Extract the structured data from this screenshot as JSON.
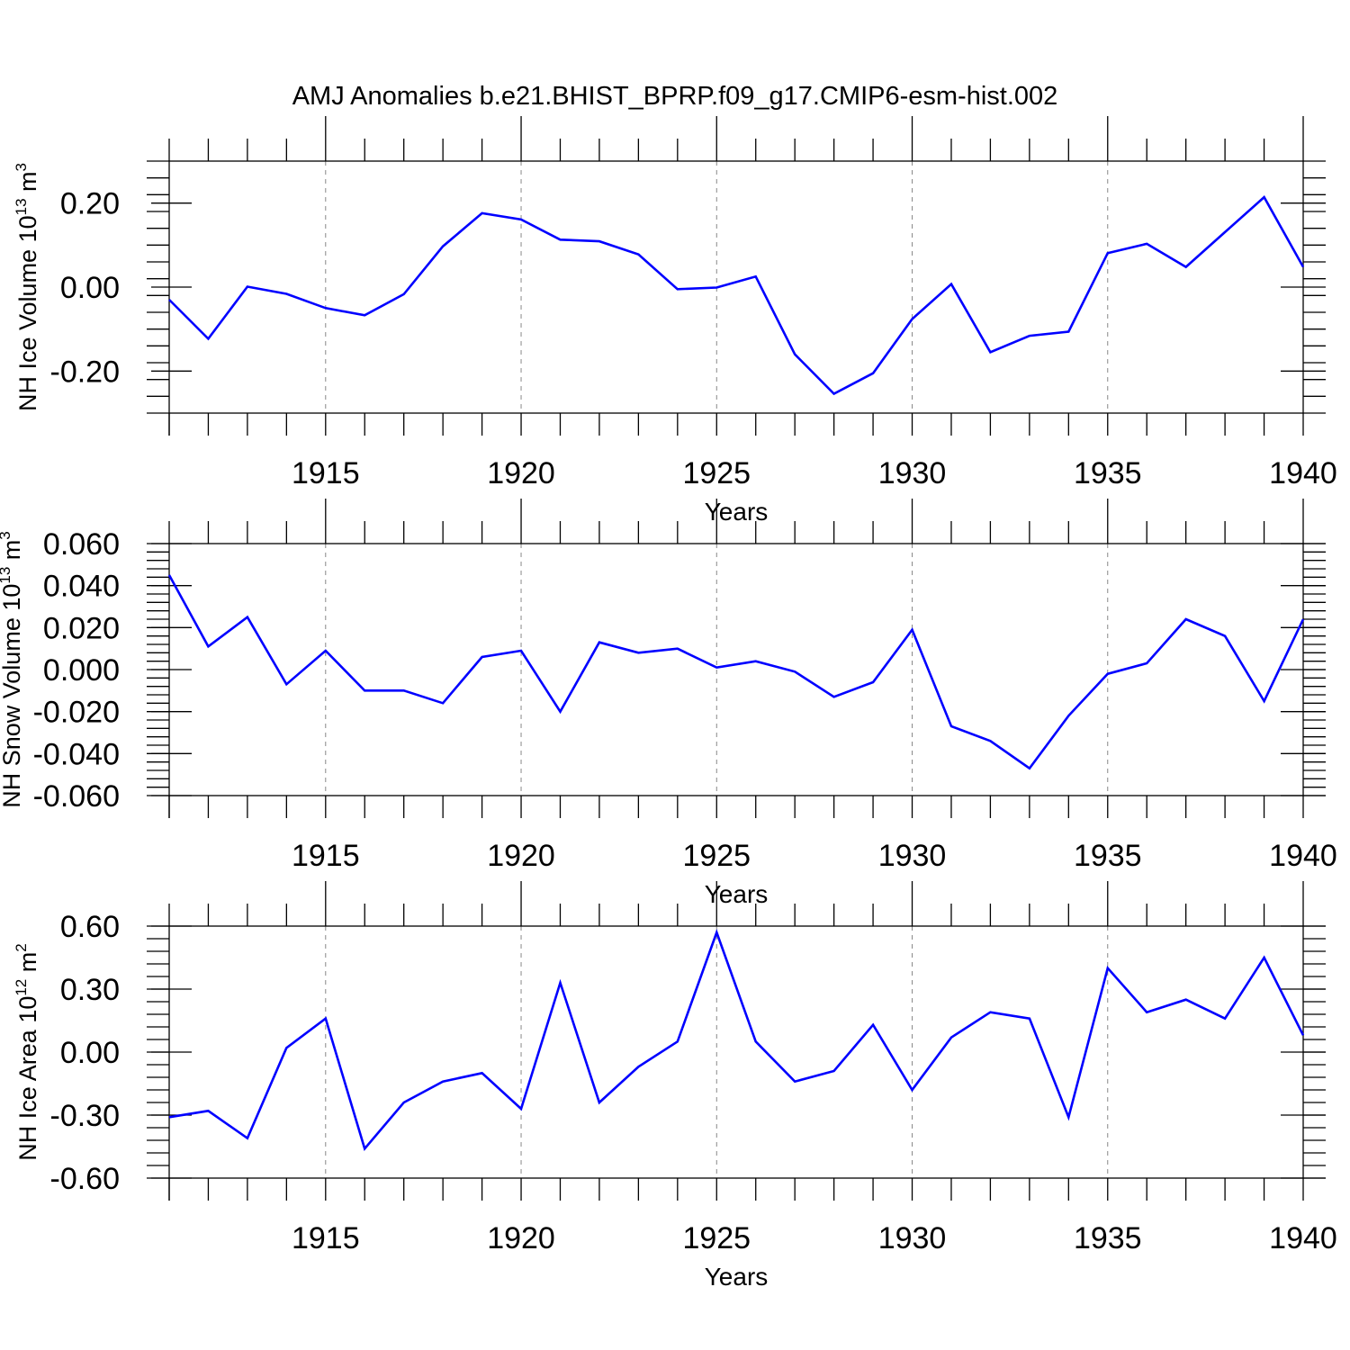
{
  "title": "AMJ Anomalies b.e21.BHIST_BPRP.f09_g17.CMIP6-esm-hist.002",
  "colors": {
    "line": "#0000ff",
    "axis": "#000000",
    "grid": "#888888"
  },
  "chart_data": [
    {
      "type": "line",
      "xlabel": "Years",
      "ylabel": {
        "text": "NH Ice Volume 10",
        "exp": "13",
        "unit": " m",
        "unit_exp": "3"
      },
      "xlim": [
        1911,
        1940
      ],
      "ylim": [
        -0.3,
        0.3
      ],
      "xticks": [
        "1915",
        "1920",
        "1925",
        "1930",
        "1935",
        "1940"
      ],
      "yticks": [
        "0.20",
        "0.00",
        "-0.20"
      ],
      "grid": "x-major dashed",
      "x": [
        1911,
        1912,
        1913,
        1914,
        1915,
        1916,
        1917,
        1918,
        1919,
        1920,
        1921,
        1922,
        1923,
        1924,
        1925,
        1926,
        1927,
        1928,
        1929,
        1930,
        1931,
        1932,
        1933,
        1934,
        1935,
        1936,
        1937,
        1938,
        1939,
        1940
      ],
      "series": [
        {
          "values": [
            -0.03,
            -0.123,
            0.001,
            -0.016,
            -0.05,
            -0.067,
            -0.017,
            0.097,
            0.176,
            0.161,
            0.113,
            0.109,
            0.078,
            -0.005,
            -0.001,
            0.025,
            -0.16,
            -0.254,
            -0.205,
            -0.076,
            0.007,
            -0.155,
            -0.116,
            -0.106,
            0.081,
            0.103,
            0.048,
            0.131,
            0.214,
            0.048
          ]
        }
      ]
    },
    {
      "type": "line",
      "xlabel": "Years",
      "ylabel": {
        "text": "NH Snow Volume 10",
        "exp": "13",
        "unit": " m",
        "unit_exp": "3"
      },
      "xlim": [
        1911,
        1940
      ],
      "ylim": [
        -0.06,
        0.06
      ],
      "xticks": [
        "1915",
        "1920",
        "1925",
        "1930",
        "1935",
        "1940"
      ],
      "yticks": [
        "0.060",
        "0.040",
        "0.020",
        "0.000",
        "-0.020",
        "-0.040",
        "-0.060"
      ],
      "grid": "x-major dashed",
      "x": [
        1911,
        1912,
        1913,
        1914,
        1915,
        1916,
        1917,
        1918,
        1919,
        1920,
        1921,
        1922,
        1923,
        1924,
        1925,
        1926,
        1927,
        1928,
        1929,
        1930,
        1931,
        1932,
        1933,
        1934,
        1935,
        1936,
        1937,
        1938,
        1939,
        1940
      ],
      "series": [
        {
          "values": [
            0.045,
            0.011,
            0.025,
            -0.007,
            0.009,
            -0.01,
            -0.01,
            -0.016,
            0.006,
            0.009,
            -0.02,
            0.013,
            0.008,
            0.01,
            0.001,
            0.004,
            -0.001,
            -0.013,
            -0.006,
            0.019,
            -0.027,
            -0.034,
            -0.047,
            -0.022,
            -0.002,
            0.003,
            0.024,
            0.016,
            -0.015,
            0.024
          ]
        }
      ]
    },
    {
      "type": "line",
      "xlabel": "Years",
      "ylabel": {
        "text": "NH Ice Area 10",
        "exp": "12",
        "unit": " m",
        "unit_exp": "2"
      },
      "xlim": [
        1911,
        1940
      ],
      "ylim": [
        -0.6,
        0.6
      ],
      "xticks": [
        "1915",
        "1920",
        "1925",
        "1930",
        "1935",
        "1940"
      ],
      "yticks": [
        "0.60",
        "0.30",
        "0.00",
        "-0.30",
        "-0.60"
      ],
      "grid": "x-major dashed",
      "x": [
        1911,
        1912,
        1913,
        1914,
        1915,
        1916,
        1917,
        1918,
        1919,
        1920,
        1921,
        1922,
        1923,
        1924,
        1925,
        1926,
        1927,
        1928,
        1929,
        1930,
        1931,
        1932,
        1933,
        1934,
        1935,
        1936,
        1937,
        1938,
        1939,
        1940
      ],
      "series": [
        {
          "values": [
            -0.31,
            -0.28,
            -0.41,
            0.02,
            0.16,
            -0.46,
            -0.24,
            -0.14,
            -0.1,
            -0.27,
            0.33,
            -0.24,
            -0.07,
            0.05,
            0.57,
            0.05,
            -0.14,
            -0.09,
            0.13,
            -0.18,
            0.07,
            0.19,
            0.16,
            -0.31,
            0.4,
            0.19,
            0.25,
            0.16,
            0.45,
            0.08
          ]
        }
      ]
    }
  ]
}
